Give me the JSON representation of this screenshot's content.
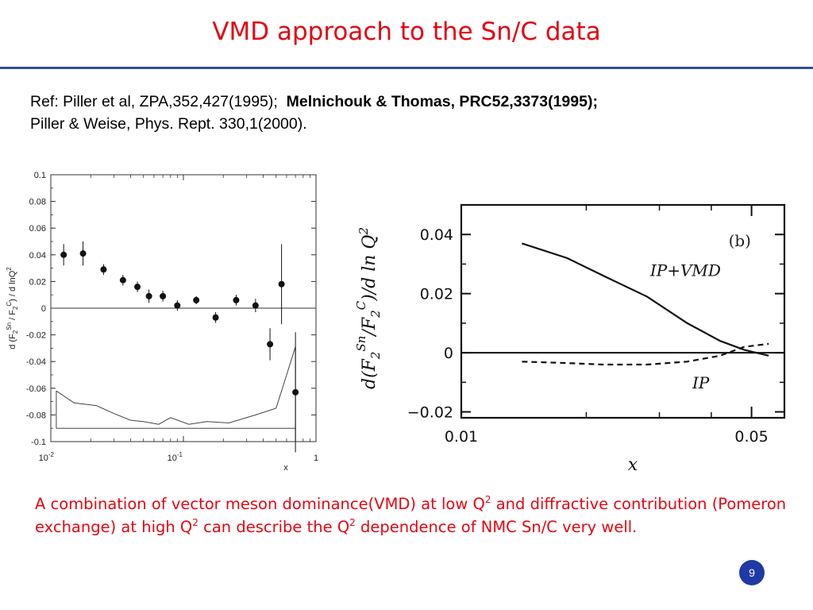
{
  "slide": {
    "title": "VMD approach to the Sn/C data",
    "page_number": "9"
  },
  "refs": {
    "line1_normal": "Ref: Piller et al, ZPA,352,427(1995);",
    "line1_bold": "Melnichouk & Thomas, PRC52,3373(1995);",
    "line2": "Piller & Weise, Phys. Rept. 330,1(2000)."
  },
  "caption": {
    "part1": "A combination of vector meson dominance(VMD)  at low Q",
    "sup1": "2",
    "part2": " and diffractive contribution (Pomeron exchange) at high Q",
    "sup2": "2",
    "part3": " can describe the Q",
    "sup3": "2",
    "part4": " dependence of NMC Sn/C very well."
  },
  "chart_data": [
    {
      "type": "scatter",
      "title": "",
      "xlabel": "x",
      "ylabel": "d (F2^Sn / F2^C) / d lnQ^2",
      "ylabel_parts": {
        "a": "d (F",
        "b": "2",
        "c": "Sn",
        "d": " / F",
        "e": "2",
        "f": "C",
        "g": ") / d lnQ",
        "h": "2"
      },
      "xscale": "log",
      "xlim": [
        0.01,
        1
      ],
      "ylim": [
        -0.1,
        0.1
      ],
      "x_tick_labels": [
        "10",
        "-2",
        "10",
        "-1",
        "1"
      ],
      "y_ticks": [
        "0.1",
        "0.08",
        "0.06",
        "0.04",
        "0.02",
        "0",
        "-0.02",
        "-0.04",
        "-0.06",
        "-0.08",
        "-0.1"
      ],
      "y_tick_values": [
        0.1,
        0.08,
        0.06,
        0.04,
        0.02,
        0,
        -0.02,
        -0.04,
        -0.06,
        -0.08,
        -0.1
      ],
      "points": [
        {
          "x": 0.0125,
          "y": 0.04,
          "err": 0.008
        },
        {
          "x": 0.0175,
          "y": 0.041,
          "err": 0.009
        },
        {
          "x": 0.025,
          "y": 0.029,
          "err": 0.004
        },
        {
          "x": 0.035,
          "y": 0.021,
          "err": 0.004
        },
        {
          "x": 0.045,
          "y": 0.016,
          "err": 0.004
        },
        {
          "x": 0.055,
          "y": 0.009,
          "err": 0.005
        },
        {
          "x": 0.07,
          "y": 0.009,
          "err": 0.004
        },
        {
          "x": 0.09,
          "y": 0.002,
          "err": 0.004
        },
        {
          "x": 0.125,
          "y": 0.006,
          "err": 0.003
        },
        {
          "x": 0.175,
          "y": -0.007,
          "err": 0.004
        },
        {
          "x": 0.25,
          "y": 0.006,
          "err": 0.004
        },
        {
          "x": 0.35,
          "y": 0.002,
          "err": 0.005
        },
        {
          "x": 0.45,
          "y": -0.027,
          "err": 0.012
        },
        {
          "x": 0.55,
          "y": 0.018,
          "err": 0.03
        },
        {
          "x": 0.7,
          "y": -0.063,
          "err": 0.045
        }
      ],
      "band": {
        "upper": [
          [
            0.011,
            -0.062
          ],
          [
            0.015,
            -0.071
          ],
          [
            0.022,
            -0.073
          ],
          [
            0.03,
            -0.079
          ],
          [
            0.04,
            -0.084
          ],
          [
            0.05,
            -0.085
          ],
          [
            0.065,
            -0.087
          ],
          [
            0.08,
            -0.082
          ],
          [
            0.11,
            -0.087
          ],
          [
            0.15,
            -0.085
          ],
          [
            0.22,
            -0.086
          ],
          [
            0.35,
            -0.08
          ],
          [
            0.5,
            -0.075
          ],
          [
            0.6,
            -0.05
          ],
          [
            0.7,
            -0.029
          ]
        ],
        "lower": -0.09
      }
    },
    {
      "type": "line",
      "title": "(b)",
      "xlabel": "x",
      "ylabel": "d(F2^Sn/F2^C)/d ln Q^2",
      "ylabel_parts": {
        "a": "d(F",
        "b": "2",
        "c": "Sn",
        "d": "/F",
        "e": "2",
        "f": "C",
        "g": ")/d ln Q",
        "h": "2"
      },
      "xscale": "log",
      "xlim": [
        0.01,
        0.06
      ],
      "ylim": [
        -0.022,
        0.05
      ],
      "x_ticks": [
        "0.01",
        "0.05"
      ],
      "x_tick_values": [
        0.01,
        0.05
      ],
      "y_ticks": [
        "0.04",
        "0.02",
        "0",
        "−0.02"
      ],
      "y_tick_values": [
        0.04,
        0.02,
        0,
        -0.02
      ],
      "series": [
        {
          "name": "IP+VMD",
          "style": "solid",
          "points": [
            [
              0.014,
              0.037
            ],
            [
              0.018,
              0.032
            ],
            [
              0.022,
              0.026
            ],
            [
              0.028,
              0.019
            ],
            [
              0.035,
              0.01
            ],
            [
              0.042,
              0.004
            ],
            [
              0.048,
              0.001
            ],
            [
              0.055,
              -0.001
            ]
          ]
        },
        {
          "name": "IP",
          "style": "dashed",
          "points": [
            [
              0.014,
              -0.003
            ],
            [
              0.018,
              -0.0035
            ],
            [
              0.022,
              -0.004
            ],
            [
              0.028,
              -0.004
            ],
            [
              0.035,
              -0.003
            ],
            [
              0.042,
              -0.001
            ],
            [
              0.048,
              0.002
            ],
            [
              0.055,
              0.003
            ]
          ]
        }
      ]
    }
  ]
}
